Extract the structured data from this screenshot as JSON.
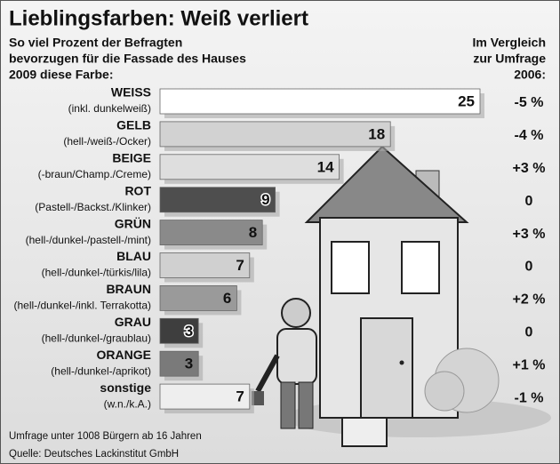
{
  "chart_data": {
    "type": "bar",
    "title": "Lieblingsfarben: Weiß verliert",
    "subtitle": [
      "So viel Prozent der Befragten",
      "bevorzugen für die Fassade des Hauses",
      "2009 diese Farbe:"
    ],
    "comparison_header": [
      "Im Vergleich",
      "zur Umfrage",
      "2006:"
    ],
    "categories": [
      "WEISS",
      "GELB",
      "BEIGE",
      "ROT",
      "GRÜN",
      "BLAU",
      "BRAUN",
      "GRAU",
      "ORANGE",
      "sonstige"
    ],
    "sublabels": [
      "(inkl. dunkelweiß)",
      "(hell-/weiß-/Ocker)",
      "(-braun/Champ./Creme)",
      "(Pastell-/Backst./Klinker)",
      "(hell-/dunkel-/pastell-/mint)",
      "(hell-/dunkel-/türkis/lila)",
      "(hell-/dunkel-/inkl. Terrakotta)",
      "(hell-/dunkel-/graublau)",
      "(hell-/dunkel-/aprikot)",
      "(w.n./k.A.)"
    ],
    "values": [
      25,
      18,
      14,
      9,
      8,
      7,
      6,
      3,
      3,
      7
    ],
    "colors": [
      "#ffffff",
      "#d2d2d2",
      "#dedede",
      "#4e4e4e",
      "#8a8a8a",
      "#d0d0d0",
      "#9a9a9a",
      "#3e3e3e",
      "#7a7a7a",
      "#eeeeee"
    ],
    "changes": [
      "-5 %",
      "-4 %",
      "+3 %",
      "0",
      "+3 %",
      "0",
      "+2 %",
      "0",
      "+1 %",
      "-1 %"
    ],
    "footnotes": [
      "Umfrage unter 1008 Bürgern ab 16 Jahren",
      "Quelle: Deutsches Lackinstitut GmbH"
    ]
  }
}
